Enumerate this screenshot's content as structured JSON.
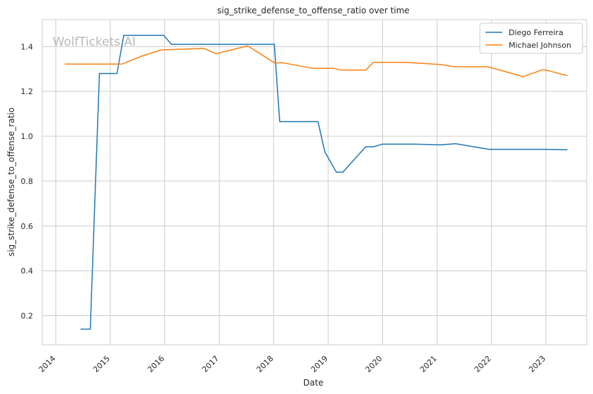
{
  "watermark": "WolfTickets.AI",
  "chart_data": {
    "type": "line",
    "title": "sig_strike_defense_to_offense_ratio over time",
    "xlabel": "Date",
    "ylabel": "sig_strike_defense_to_offense_ratio",
    "xlim": [
      "2013-10-01",
      "2023-10-01"
    ],
    "ylim": [
      0.07,
      1.52
    ],
    "x_ticks": [
      "2014",
      "2015",
      "2016",
      "2017",
      "2018",
      "2019",
      "2020",
      "2021",
      "2022",
      "2023"
    ],
    "y_ticks": [
      "0.2",
      "0.4",
      "0.6",
      "0.8",
      "1.0",
      "1.2",
      "1.4"
    ],
    "grid": true,
    "legend_position": "top-right",
    "series": [
      {
        "name": "Diego Ferreira",
        "color": "#1f77b4",
        "points": [
          [
            "2014-06-15",
            0.14
          ],
          [
            "2014-08-20",
            0.14
          ],
          [
            "2014-10-20",
            1.28
          ],
          [
            "2015-02-15",
            1.28
          ],
          [
            "2015-04-01",
            1.45
          ],
          [
            "2015-12-25",
            1.45
          ],
          [
            "2016-02-15",
            1.41
          ],
          [
            "2018-01-05",
            1.41
          ],
          [
            "2018-02-10",
            1.065
          ],
          [
            "2018-10-25",
            1.065
          ],
          [
            "2018-12-10",
            0.93
          ],
          [
            "2019-02-25",
            0.84
          ],
          [
            "2019-04-10",
            0.84
          ],
          [
            "2019-09-10",
            0.953
          ],
          [
            "2019-11-01",
            0.953
          ],
          [
            "2020-01-01",
            0.965
          ],
          [
            "2020-08-01",
            0.965
          ],
          [
            "2021-01-25",
            0.962
          ],
          [
            "2021-05-05",
            0.967
          ],
          [
            "2021-12-15",
            0.942
          ],
          [
            "2023-01-01",
            0.942
          ],
          [
            "2023-05-25",
            0.94
          ]
        ]
      },
      {
        "name": "Michael Johnson",
        "color": "#ff7f0e",
        "points": [
          [
            "2014-03-01",
            1.322
          ],
          [
            "2015-03-20",
            1.322
          ],
          [
            "2015-08-10",
            1.36
          ],
          [
            "2015-12-10",
            1.385
          ],
          [
            "2016-09-20",
            1.392
          ],
          [
            "2016-12-10",
            1.368
          ],
          [
            "2017-07-10",
            1.403
          ],
          [
            "2018-01-10",
            1.326
          ],
          [
            "2018-03-01",
            1.328
          ],
          [
            "2018-09-20",
            1.303
          ],
          [
            "2019-02-10",
            1.303
          ],
          [
            "2019-04-01",
            1.295
          ],
          [
            "2019-09-10",
            1.295
          ],
          [
            "2019-11-01",
            1.33
          ],
          [
            "2020-06-01",
            1.33
          ],
          [
            "2021-01-25",
            1.32
          ],
          [
            "2021-04-25",
            1.31
          ],
          [
            "2021-12-10",
            1.31
          ],
          [
            "2022-08-01",
            1.266
          ],
          [
            "2022-12-10",
            1.297
          ],
          [
            "2023-01-20",
            1.292
          ],
          [
            "2023-05-25",
            1.27
          ]
        ]
      }
    ]
  }
}
